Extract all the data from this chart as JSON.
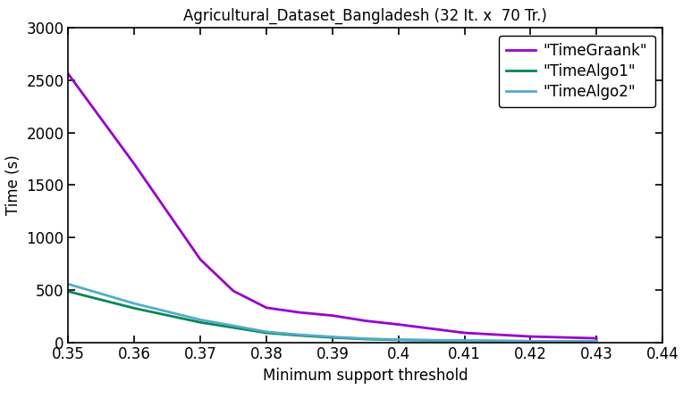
{
  "title": "Agricultural_Dataset_Bangladesh (32 It. x  70 Tr.)",
  "xlabel": "Minimum support threshold",
  "ylabel": "Time (s)",
  "xlim": [
    0.35,
    0.44
  ],
  "ylim": [
    0,
    3000
  ],
  "xticks": [
    0.35,
    0.36,
    0.37,
    0.38,
    0.39,
    0.4,
    0.41,
    0.42,
    0.43,
    0.44
  ],
  "xtick_labels": [
    "0.35",
    "0.36",
    "0.37",
    "0.38",
    "0.39",
    "0.4",
    "0.41",
    "0.42",
    "0.43",
    "0.44"
  ],
  "yticks": [
    0,
    500,
    1000,
    1500,
    2000,
    2500,
    3000
  ],
  "series": [
    {
      "label": "\"TimeGraank\"",
      "color": "#9900cc",
      "x": [
        0.35,
        0.36,
        0.37,
        0.375,
        0.38,
        0.385,
        0.39,
        0.395,
        0.4,
        0.405,
        0.41,
        0.42,
        0.43
      ],
      "y": [
        2560,
        1700,
        790,
        490,
        330,
        285,
        255,
        205,
        170,
        130,
        90,
        55,
        38
      ]
    },
    {
      "label": "\"TimeAlgo1\"",
      "color": "#008855",
      "x": [
        0.35,
        0.36,
        0.37,
        0.375,
        0.38,
        0.385,
        0.39,
        0.395,
        0.4,
        0.41,
        0.42,
        0.43
      ],
      "y": [
        485,
        325,
        190,
        140,
        90,
        65,
        45,
        30,
        22,
        15,
        10,
        8
      ]
    },
    {
      "label": "\"TimeAlgo2\"",
      "color": "#55aacc",
      "x": [
        0.35,
        0.36,
        0.37,
        0.375,
        0.38,
        0.385,
        0.39,
        0.395,
        0.4,
        0.41,
        0.42,
        0.43
      ],
      "y": [
        555,
        370,
        215,
        158,
        100,
        72,
        52,
        35,
        25,
        16,
        11,
        9
      ]
    }
  ],
  "legend_loc": "upper right",
  "linewidth": 2.0,
  "background_color": "#ffffff",
  "title_fontsize": 12,
  "label_fontsize": 12,
  "tick_fontsize": 12,
  "legend_fontsize": 12
}
